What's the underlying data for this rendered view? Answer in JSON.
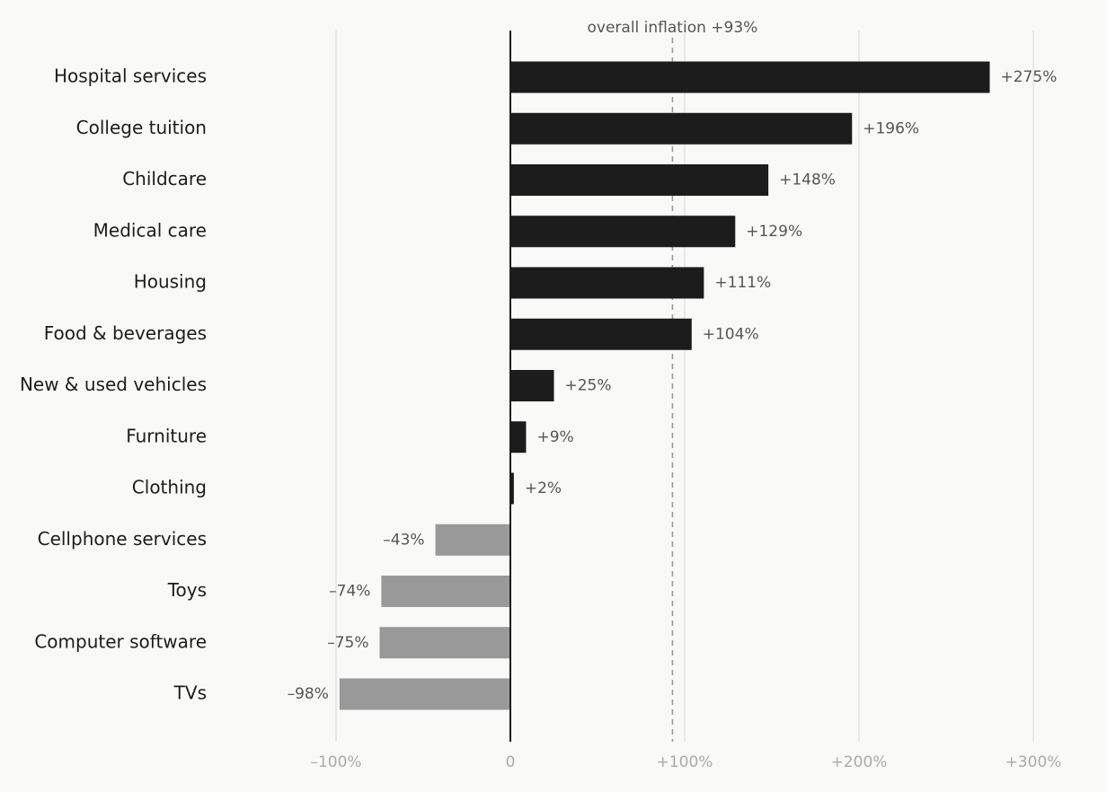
{
  "chart_data": {
    "type": "bar",
    "orientation": "horizontal",
    "categories": [
      "Hospital services",
      "College tuition",
      "Childcare",
      "Medical care",
      "Housing",
      "Food & beverages",
      "New & used vehicles",
      "Furniture",
      "Clothing",
      "Cellphone services",
      "Toys",
      "Computer software",
      "TVs"
    ],
    "values": [
      275,
      196,
      148,
      129,
      111,
      104,
      25,
      9,
      2,
      -43,
      -74,
      -75,
      -98
    ],
    "data_labels": [
      "+275%",
      "+196%",
      "+148%",
      "+129%",
      "+111%",
      "+104%",
      "+25%",
      "+9%",
      "+2%",
      "–43%",
      "–74%",
      "–75%",
      "–98%"
    ],
    "x_ticks": [
      -100,
      0,
      100,
      200,
      300
    ],
    "x_tick_labels": [
      "–100%",
      "0",
      "+100%",
      "+200%",
      "+300%"
    ],
    "xlim": [
      -100,
      300
    ],
    "reference_line": {
      "value": 93,
      "label": "overall inflation +93%",
      "style": "dashed"
    },
    "colors": {
      "positive": "#1c1c1c",
      "negative": "#999999",
      "grid": "#e4e4e2",
      "zero_line": "#1c1c1c",
      "reference": "#999999",
      "label_text": "#1c1c1c",
      "value_text": "#555555",
      "tick_text": "#aaaaaa"
    },
    "grid": "vertical",
    "title": "",
    "xlabel": "",
    "ylabel": ""
  }
}
